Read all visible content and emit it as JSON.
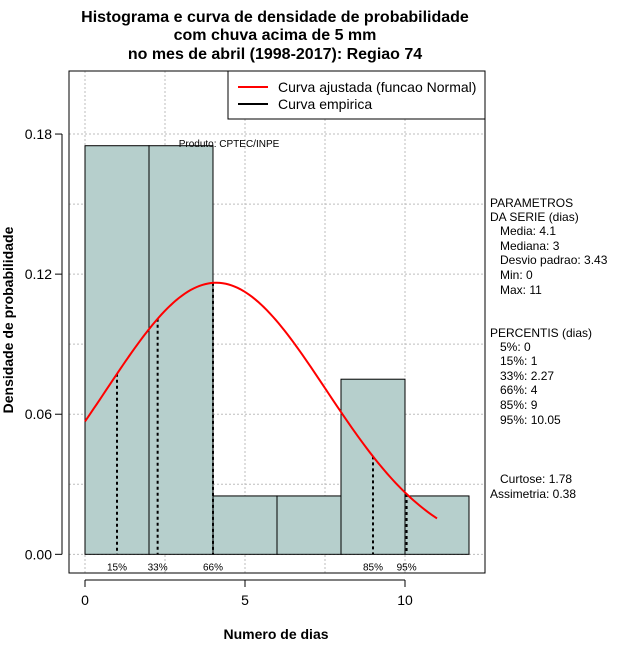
{
  "chart_data": {
    "type": "bar",
    "title_lines": [
      "Histograma e curva de densidade de probabilidade",
      "com chuva acima de 5 mm",
      "no mes de abril (1998-2017): Regiao 74"
    ],
    "xlabel": "Numero de dias",
    "ylabel": "Densidade de probabilidade",
    "xlim": [
      -0.5,
      12.5
    ],
    "ylim": [
      -0.008,
      0.207
    ],
    "x_ticks": [
      0,
      5,
      10
    ],
    "y_ticks": [
      0.0,
      0.06,
      0.12,
      0.18
    ],
    "y_tick_labels": [
      "0.00",
      "0.06",
      "0.12",
      "0.18"
    ],
    "grid": true,
    "bins": [
      {
        "from": 0,
        "to": 2,
        "value": 0.175
      },
      {
        "from": 2,
        "to": 4,
        "value": 0.175
      },
      {
        "from": 4,
        "to": 6,
        "value": 0.025
      },
      {
        "from": 6,
        "to": 8,
        "value": 0.025
      },
      {
        "from": 8,
        "to": 10,
        "value": 0.075
      },
      {
        "from": 10,
        "to": 12,
        "value": 0.025
      }
    ],
    "normal_curve": {
      "mean": 4.1,
      "sd": 3.43,
      "x_from": 0,
      "x_to": 11
    },
    "percentile_lines": [
      {
        "label": "15%",
        "x": 1
      },
      {
        "label": "33%",
        "x": 2.27
      },
      {
        "label": "66%",
        "x": 4
      },
      {
        "label": "85%",
        "x": 9
      },
      {
        "label": "95%",
        "x": 10.05
      }
    ],
    "legend": {
      "position": "top-right",
      "entries": [
        {
          "label": "Curva ajustada (funcao Normal)",
          "color": "#ff0000"
        },
        {
          "label": "Curva empirica",
          "color": "#000000"
        }
      ]
    },
    "annotation": "Produto: CPTEC/INPE",
    "bar_color": "#b6cfcc",
    "curve_color": "#ff0000"
  },
  "side_panel": {
    "parametros": [
      "PARAMETROS",
      "DA SERIE (dias)",
      "   Media: 4.1",
      "   Mediana: 3",
      "   Desvio padrao: 3.43",
      "   Min: 0",
      "   Max: 11"
    ],
    "percentis": [
      "PERCENTIS (dias)",
      "   5%: 0",
      "   15%: 1",
      "   33%: 2.27",
      "   66%: 4",
      "   85%: 9",
      "   95%: 10.05"
    ],
    "extra": [
      "   Curtose: 1.78",
      "Assimetria: 0.38"
    ]
  }
}
